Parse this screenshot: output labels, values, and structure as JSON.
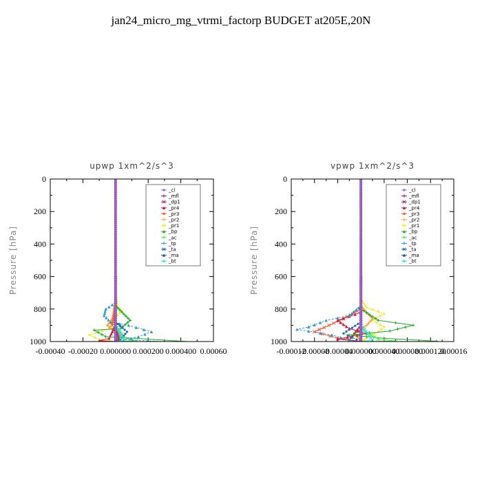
{
  "title": "jan24_micro_mg_vtrmi_factorp  BUDGET at205E,20N",
  "legend_entries": [
    {
      "name": "_cl",
      "color": "#9966cc"
    },
    {
      "name": "_mfl",
      "color": "#8b1a8b"
    },
    {
      "name": "_dp1",
      "color": "#b03060"
    },
    {
      "name": "_pr4",
      "color": "#dd1133"
    },
    {
      "name": "_pr3",
      "color": "#ff5533"
    },
    {
      "name": "_pr2",
      "color": "#ff9933"
    },
    {
      "name": "_pr1",
      "color": "#eeee33"
    },
    {
      "name": "_bp",
      "color": "#22aa22"
    },
    {
      "name": "_ac",
      "color": "#55ee55"
    },
    {
      "name": "_tp",
      "color": "#3399cc"
    },
    {
      "name": "_ta",
      "color": "#2266bb"
    },
    {
      "name": "_ma",
      "color": "#2a4a9a"
    },
    {
      "name": "_bt",
      "color": "#33dddd"
    }
  ],
  "chart_data": [
    {
      "type": "line",
      "title": "upwp   1xm^2/s^3",
      "ylabel": "Pressure [hPa]",
      "xlim": [
        -0.0004,
        0.0006
      ],
      "ylim": [
        1000,
        0
      ],
      "xticks": [
        "-0.00040",
        "-0.00020",
        "0.000000",
        "0.000200",
        "0.000400",
        "0.00060"
      ],
      "xtick_values": [
        -0.0004,
        -0.0002,
        0.0,
        0.0002,
        0.0004,
        0.0006
      ],
      "yticks": [
        "0",
        "200",
        "400",
        "600",
        "800",
        "1000"
      ],
      "ytick_values": [
        0,
        200,
        400,
        600,
        800,
        1000
      ],
      "legend_position": "top-right",
      "series": [
        {
          "name": "_pr1",
          "points": [
            [
              0,
              700
            ],
            [
              1e-05,
              780
            ],
            [
              4e-05,
              810
            ],
            [
              1e-05,
              840
            ],
            [
              -2e-05,
              880
            ],
            [
              -4e-05,
              920
            ],
            [
              -0.00016,
              960
            ],
            [
              -9e-05,
              990
            ],
            [
              0,
              1000
            ]
          ]
        },
        {
          "name": "_pr2",
          "points": [
            [
              0,
              750
            ],
            [
              -2e-05,
              860
            ],
            [
              -5e-05,
              900
            ],
            [
              2e-05,
              960
            ],
            [
              0,
              1000
            ]
          ]
        },
        {
          "name": "_pr3",
          "points": [
            [
              0,
              800
            ],
            [
              -2e-05,
              900
            ],
            [
              3e-05,
              960
            ],
            [
              1e-05,
              990
            ],
            [
              0,
              1000
            ]
          ]
        },
        {
          "name": "_pr4",
          "points": [
            [
              0,
              900
            ],
            [
              -4e-05,
              980
            ],
            [
              -0.0001,
              995
            ],
            [
              0,
              1000
            ]
          ]
        },
        {
          "name": "_dp1",
          "points": [
            [
              0,
              900
            ],
            [
              2e-05,
              990
            ],
            [
              0,
              1000
            ]
          ]
        },
        {
          "name": "_bp",
          "points": [
            [
              0,
              780
            ],
            [
              9e-05,
              870
            ],
            [
              3e-05,
              920
            ],
            [
              -0.00013,
              930
            ],
            [
              -6e-05,
              970
            ],
            [
              0.0002,
              985
            ],
            [
              0.00044,
              1000
            ]
          ]
        },
        {
          "name": "_ac",
          "points": [
            [
              0,
              900
            ],
            [
              6e-05,
              980
            ],
            [
              0.00013,
              995
            ],
            [
              0,
              1000
            ]
          ]
        },
        {
          "name": "_tp",
          "points": [
            [
              0,
              760
            ],
            [
              -6e-05,
              800
            ],
            [
              -7e-05,
              840
            ],
            [
              -3e-05,
              880
            ],
            [
              8e-05,
              900
            ],
            [
              0.00022,
              940
            ],
            [
              0.00014,
              970
            ],
            [
              5e-05,
              990
            ],
            [
              0.0003,
              1000
            ]
          ]
        },
        {
          "name": "_ta",
          "points": [
            [
              0,
              880
            ],
            [
              7e-05,
              940
            ],
            [
              3e-05,
              990
            ],
            [
              0,
              1000
            ]
          ]
        },
        {
          "name": "_ma",
          "points": [
            [
              0,
              600
            ],
            [
              0,
              1000
            ]
          ]
        },
        {
          "name": "_bt",
          "points": [
            [
              0,
              900
            ],
            [
              5e-05,
              990
            ],
            [
              0,
              1000
            ]
          ]
        },
        {
          "name": "_mfl",
          "points": [
            [
              0,
              0
            ],
            [
              0,
              1000
            ]
          ]
        },
        {
          "name": "_cl",
          "points": [
            [
              0,
              0
            ],
            [
              0,
              1000
            ]
          ]
        }
      ]
    },
    {
      "type": "line",
      "title": "vpwp   1xm^2/s^3",
      "ylabel": "Pressure [hPa]",
      "xlim": [
        -0.00012,
        0.00016
      ],
      "ylim": [
        1000,
        0
      ],
      "xticks": [
        "-0.00012",
        "-0.00008",
        "-0.00004",
        "0.000000",
        "0.000040",
        "0.000080",
        "0.000120",
        "0.00016"
      ],
      "xtick_values": [
        -0.00012,
        -8e-05,
        -4e-05,
        0.0,
        4e-05,
        8e-05,
        0.00012,
        0.00016
      ],
      "yticks": [
        "0",
        "200",
        "400",
        "600",
        "800",
        "1000"
      ],
      "ytick_values": [
        0,
        200,
        400,
        600,
        800,
        1000
      ],
      "legend_position": "top-right",
      "series": [
        {
          "name": "_pr1",
          "points": [
            [
              0,
              740
            ],
            [
              1e-05,
              790
            ],
            [
              4e-05,
              830
            ],
            [
              2e-05,
              870
            ],
            [
              4e-05,
              910
            ],
            [
              3e-05,
              940
            ],
            [
              1e-05,
              980
            ],
            [
              0,
              1000
            ]
          ]
        },
        {
          "name": "_pr2",
          "points": [
            [
              0,
              780
            ],
            [
              2e-05,
              860
            ],
            [
              1e-05,
              900
            ],
            [
              -1e-05,
              950
            ],
            [
              0,
              1000
            ]
          ]
        },
        {
          "name": "_pr3",
          "points": [
            [
              0,
              800
            ],
            [
              -3e-05,
              860
            ],
            [
              -8e-05,
              940
            ],
            [
              -4e-05,
              980
            ],
            [
              0,
              1000
            ]
          ]
        },
        {
          "name": "_pr4",
          "points": [
            [
              0,
              820
            ],
            [
              -4e-05,
              870
            ],
            [
              -2e-05,
              920
            ],
            [
              1e-05,
              950
            ],
            [
              -4e-05,
              985
            ],
            [
              0,
              1000
            ]
          ]
        },
        {
          "name": "_dp1",
          "points": [
            [
              0,
              900
            ],
            [
              -2e-05,
              990
            ],
            [
              0,
              1000
            ]
          ]
        },
        {
          "name": "_bp",
          "points": [
            [
              0,
              800
            ],
            [
              3e-05,
              870
            ],
            [
              9e-05,
              900
            ],
            [
              5e-05,
              935
            ],
            [
              -2e-05,
              960
            ],
            [
              4e-05,
              980
            ],
            [
              0.00013,
              998
            ],
            [
              0.00012,
              1000
            ]
          ]
        },
        {
          "name": "_ac",
          "points": [
            [
              0,
              920
            ],
            [
              3e-05,
              985
            ],
            [
              6e-05,
              997
            ],
            [
              0,
              1000
            ]
          ]
        },
        {
          "name": "_tp",
          "points": [
            [
              0,
              780
            ],
            [
              -2e-05,
              840
            ],
            [
              -6e-05,
              870
            ],
            [
              -9e-05,
              910
            ],
            [
              -0.00011,
              925
            ],
            [
              -5e-05,
              960
            ],
            [
              -2e-05,
              990
            ],
            [
              0,
              1000
            ]
          ]
        },
        {
          "name": "_ta",
          "points": [
            [
              0,
              880
            ],
            [
              -3e-05,
              950
            ],
            [
              0,
              1000
            ]
          ]
        },
        {
          "name": "_ma",
          "points": [
            [
              0,
              600
            ],
            [
              0,
              1000
            ]
          ]
        },
        {
          "name": "_bt",
          "points": [
            [
              0,
              900
            ],
            [
              2e-05,
              990
            ],
            [
              0,
              1000
            ]
          ]
        },
        {
          "name": "_mfl",
          "points": [
            [
              0,
              0
            ],
            [
              0,
              1000
            ]
          ]
        },
        {
          "name": "_cl",
          "points": [
            [
              0,
              0
            ],
            [
              0,
              1000
            ]
          ]
        }
      ]
    }
  ]
}
